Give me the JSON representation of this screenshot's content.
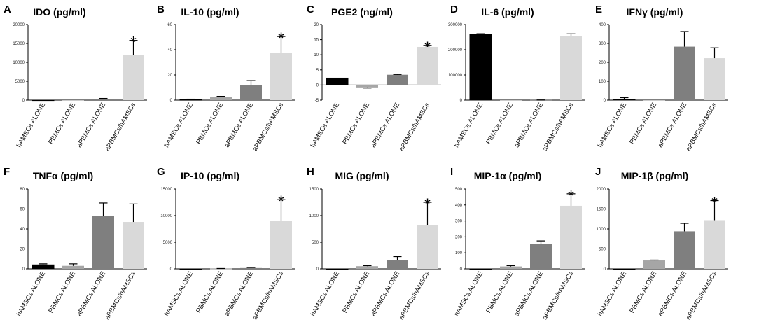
{
  "figure": {
    "categories": [
      "hAMSCs ALONE",
      "PBMCs ALONE",
      "aPBMCs ALONE",
      "aPBMCs/hAMSCs"
    ],
    "bar_colors": [
      "#000000",
      "#a6a6a6",
      "#7f7f7f",
      "#d9d9d9"
    ],
    "significance_marker": "*"
  },
  "chart_data": [
    {
      "type": "bar",
      "letter": "A",
      "title": "IDO (pg/ml)",
      "ylabel": "IDO (pg/ml)",
      "categories": [
        "hAMSCs ALONE",
        "PBMCs ALONE",
        "aPBMCs ALONE",
        "aPBMCs/hAMSCs"
      ],
      "values": [
        0,
        0,
        300,
        12000
      ],
      "errors": [
        0,
        0,
        150,
        3800
      ],
      "ylim": [
        0,
        20000
      ],
      "ticks": [
        0,
        5000,
        10000,
        15000,
        20000
      ],
      "tick_labels": [
        "0",
        "5000",
        "10000",
        "15000",
        "20000"
      ],
      "significant": [
        3
      ]
    },
    {
      "type": "bar",
      "letter": "B",
      "title": "IL-10 (pg/ml)",
      "ylabel": "IL-10 (pg/ml)",
      "categories": [
        "hAMSCs ALONE",
        "PBMCs ALONE",
        "aPBMCs ALONE",
        "aPBMCs/hAMSCs"
      ],
      "values": [
        0.5,
        2.5,
        12,
        37.5
      ],
      "errors": [
        0.3,
        0.5,
        3.5,
        13
      ],
      "ylim": [
        0,
        60
      ],
      "ticks": [
        0,
        20,
        40,
        60
      ],
      "tick_labels": [
        "0",
        "20",
        "40",
        "60"
      ],
      "significant": [
        3
      ]
    },
    {
      "type": "bar",
      "letter": "C",
      "title": "PGE2 (ng/ml)",
      "ylabel": "PGE2 (ng/ml)",
      "categories": [
        "hAMSCs ALONE",
        "PBMCs ALONE",
        "aPBMCs ALONE",
        "aPBMCs/hAMSCs"
      ],
      "values": [
        2.3,
        -0.8,
        3.4,
        12.6
      ],
      "errors": [
        0,
        0.2,
        0.1,
        0.5
      ],
      "ylim": [
        -5,
        20
      ],
      "ticks": [
        -5,
        0,
        5,
        10,
        15,
        20
      ],
      "tick_labels": [
        "-5",
        "0",
        "5",
        "10",
        "15",
        "20"
      ],
      "significant": [
        3
      ]
    },
    {
      "type": "bar",
      "letter": "D",
      "title": "IL-6 (pg/ml)",
      "ylabel": "IL-6 (pg/ml)",
      "categories": [
        "hAMSCs ALONE",
        "PBMCs ALONE",
        "aPBMCs ALONE",
        "aPBMCs/hAMSCs"
      ],
      "values": [
        262000,
        0,
        500,
        255000
      ],
      "errors": [
        1500,
        0,
        300,
        8000
      ],
      "ylim": [
        0,
        300000
      ],
      "ticks": [
        0,
        100000,
        200000,
        300000
      ],
      "tick_labels": [
        "0",
        "100000",
        "200000",
        "300000"
      ],
      "significant": []
    },
    {
      "type": "bar",
      "letter": "E",
      "title": "IFNγ (pg/ml)",
      "ylabel": "IFNγ (pg/ml)",
      "categories": [
        "hAMSCs ALONE",
        "PBMCs ALONE",
        "aPBMCs ALONE",
        "aPBMCs/hAMSCs"
      ],
      "values": [
        5,
        0,
        283,
        222
      ],
      "errors": [
        8,
        0,
        80,
        55
      ],
      "ylim": [
        0,
        400
      ],
      "ticks": [
        0,
        100,
        200,
        300,
        400
      ],
      "tick_labels": [
        "0",
        "100",
        "200",
        "300",
        "400"
      ],
      "significant": []
    },
    {
      "type": "bar",
      "letter": "F",
      "title": "TNFα (pg/ml)",
      "ylabel": "TNFα (pg/ml)",
      "categories": [
        "hAMSCs ALONE",
        "PBMCs ALONE",
        "aPBMCs ALONE",
        "aPBMCs/hAMSCs"
      ],
      "values": [
        4,
        3,
        53,
        47
      ],
      "errors": [
        1,
        2,
        13,
        18
      ],
      "ylim": [
        0,
        80
      ],
      "ticks": [
        0,
        20,
        40,
        60,
        80
      ],
      "tick_labels": [
        "0",
        "20",
        "40",
        "60",
        "80"
      ],
      "significant": []
    },
    {
      "type": "bar",
      "letter": "G",
      "title": "IP-10 (pg/ml)",
      "ylabel": "IP-10 (pg/ml)",
      "categories": [
        "hAMSCs ALONE",
        "PBMCs ALONE",
        "aPBMCs ALONE",
        "aPBMCs/hAMSCs"
      ],
      "values": [
        0,
        50,
        150,
        9000
      ],
      "errors": [
        0,
        20,
        100,
        4000
      ],
      "ylim": [
        0,
        15000
      ],
      "ticks": [
        0,
        5000,
        10000,
        15000
      ],
      "tick_labels": [
        "0",
        "5000",
        "10000",
        "15000"
      ],
      "significant": [
        3
      ]
    },
    {
      "type": "bar",
      "letter": "H",
      "title": "MIG (pg/ml)",
      "ylabel": "MIG (pg/ml)",
      "categories": [
        "hAMSCs ALONE",
        "PBMCs ALONE",
        "aPBMCs ALONE",
        "aPBMCs/hAMSCs"
      ],
      "values": [
        0,
        50,
        170,
        820
      ],
      "errors": [
        0,
        10,
        60,
        430
      ],
      "ylim": [
        0,
        1500
      ],
      "ticks": [
        0,
        500,
        1000,
        1500
      ],
      "tick_labels": [
        "0",
        "500",
        "1000",
        "1500"
      ],
      "significant": [
        3
      ]
    },
    {
      "type": "bar",
      "letter": "I",
      "title": "MIP-1α (pg/ml)",
      "ylabel": "MIP-1α (pg/ml)",
      "categories": [
        "hAMSCs ALONE",
        "PBMCs ALONE",
        "aPBMCs ALONE",
        "aPBMCs/hAMSCs"
      ],
      "values": [
        0,
        15,
        155,
        395
      ],
      "errors": [
        0,
        5,
        20,
        75
      ],
      "ylim": [
        0,
        500
      ],
      "ticks": [
        0,
        100,
        200,
        300,
        400,
        500
      ],
      "tick_labels": [
        "0",
        "100",
        "200",
        "300",
        "400",
        "500"
      ],
      "significant": [
        3
      ]
    },
    {
      "type": "bar",
      "letter": "J",
      "title": "MIP-1β (pg/ml)",
      "ylabel": "MIP-1β (pg/ml)",
      "categories": [
        "hAMSCs ALONE",
        "PBMCs ALONE",
        "aPBMCs ALONE",
        "aPBMCs/hAMSCs"
      ],
      "values": [
        0,
        210,
        940,
        1220
      ],
      "errors": [
        0,
        10,
        200,
        490
      ],
      "ylim": [
        0,
        2000
      ],
      "ticks": [
        0,
        500,
        1000,
        1500,
        2000
      ],
      "tick_labels": [
        "0",
        "500",
        "1000",
        "1500",
        "2000"
      ],
      "significant": [
        3
      ]
    }
  ]
}
